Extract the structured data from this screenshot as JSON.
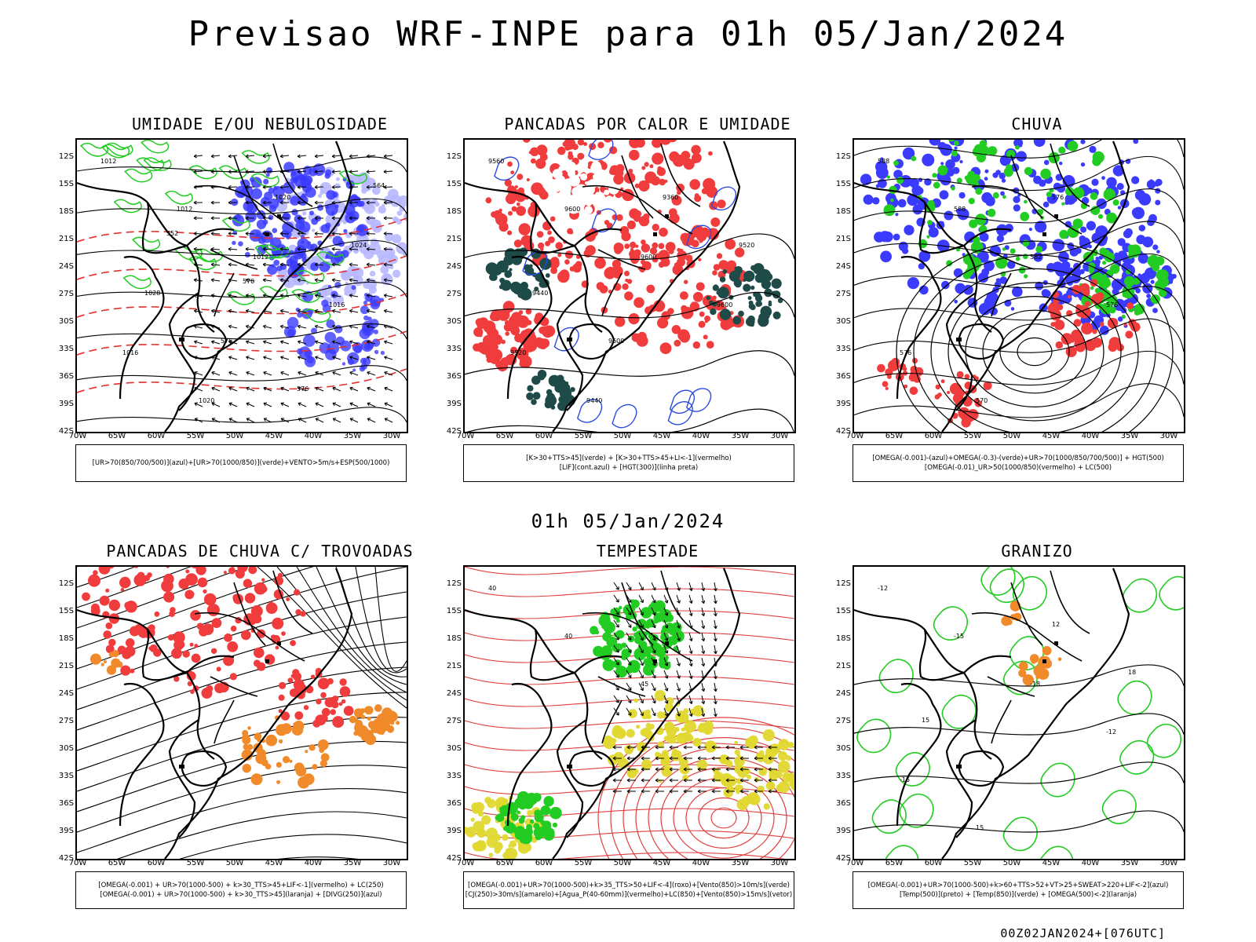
{
  "title": "Previsao WRF-INPE  para 01h 05/Jan/2024",
  "mid_title": "01h 05/Jan/2024",
  "footer": "00Z02JAN2024+[076UTC]",
  "axes": {
    "lat_labels": [
      "12S",
      "15S",
      "18S",
      "21S",
      "24S",
      "27S",
      "30S",
      "33S",
      "36S",
      "39S",
      "42S"
    ],
    "lon_labels": [
      "70W",
      "65W",
      "60W",
      "55W",
      "50W",
      "45W",
      "40W",
      "35W",
      "30W"
    ]
  },
  "colors": {
    "humid_blue": "#3b3bff",
    "light_blue": "#b8b8ff",
    "green": "#22cc22",
    "red": "#f03c3c",
    "dark_teal": "#1e4a48",
    "orange": "#f08a2a",
    "yellow": "#e0d830"
  },
  "panels": [
    {
      "title": "UMIDADE E/OU NEBULOSIDADE",
      "legend": [
        "[UR>70(850/700/500)](azul)+[UR>70(1000/850)](verde)+VENTO>5m/s+ESP(500/1000)"
      ],
      "contour_labels": [
        "1012",
        "1012",
        "1012",
        "1016",
        "1016",
        "1020",
        "1020",
        "1024",
        "1028",
        "576",
        "576",
        "564",
        "552",
        "570"
      ]
    },
    {
      "title": "PANCADAS POR CALOR E UMIDADE",
      "legend": [
        "[K>30+TTS>45](verde) + [K>30+TTS>45+LI<-1](vermelho)",
        "[LIF](cont.azul) + [HGT(300)](linha preta)"
      ],
      "contour_labels": [
        "9560",
        "9600",
        "9600",
        "9600",
        "9520",
        "9440",
        "9360",
        "9520",
        "9440",
        "9600"
      ]
    },
    {
      "title": "CHUVA",
      "legend": [
        "[OMEGA(-0.001)-(azul)+OMEGA(-0.3)-(verde)+UR>70(1000/850/700/500)] + HGT(500)",
        "[OMEGA(-0.01)_UR>50(1000/850)(vermelho) + LC(500)"
      ],
      "contour_labels": [
        "588",
        "588",
        "582",
        "576",
        "576",
        "570",
        "576"
      ]
    },
    {
      "title": "PANCADAS DE CHUVA C/ TROVOADAS",
      "legend": [
        "[OMEGA(-0.001) + UR>70(1000-500) + k>30_TTS>45+LIF<-1](vermelho) + LC(250)",
        "[OMEGA(-0.001) + UR>70(1000-500) + k>30_TTS>45](laranja) + [DIVG(250)](azul)"
      ],
      "contour_labels": []
    },
    {
      "title": "TEMPESTADE",
      "legend": [
        "[OMEGA(-0.001)+UR>70(1000-500)+k>35_TTS>50+LIF<-4](roxo)+[Vento(850)>10m/s](verde)",
        "[CJ(250)>30m/s](amarelo)+[Agua_P(40-60mm)](vermelho)+LC(850)+[Vento(850)>15m/s](vetor)"
      ],
      "contour_labels": [
        "40",
        "40",
        "45"
      ]
    },
    {
      "title": "GRANIZO",
      "legend": [
        "[OMEGA(-0.001)+UR>70(1000-500)+k>60+TTS>52+VT>25+SWEAT>220+LIF<-2](azul)",
        "[Temp(500)](preto) + [Temp(850)](verde) + [OMEGA(500)<-2](laranja)"
      ],
      "contour_labels": [
        "-12",
        "-15",
        "-18",
        "-12",
        "-15",
        "15",
        "12",
        "18",
        "15"
      ]
    }
  ]
}
